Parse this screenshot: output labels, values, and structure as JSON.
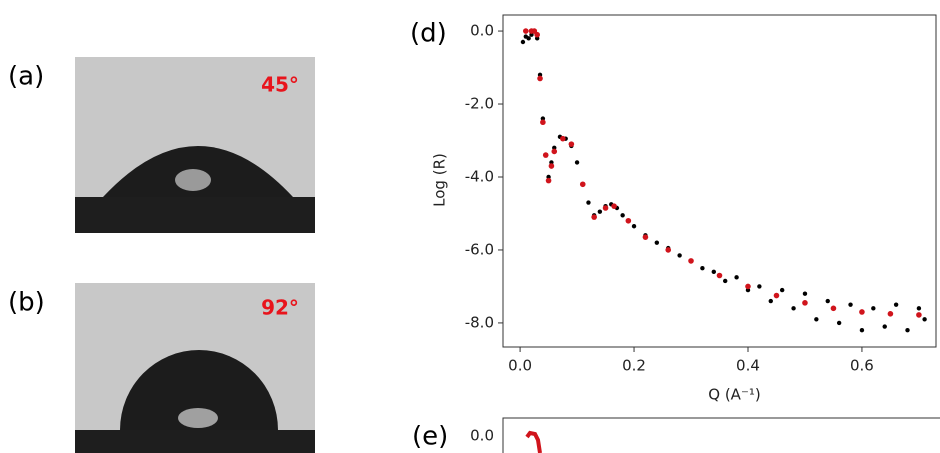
{
  "panels": [
    {
      "label": "(a)",
      "angle": "45°"
    },
    {
      "label": "(b)",
      "angle": "92°"
    },
    {
      "label": "(e)",
      "ytick": "0.0"
    }
  ],
  "chart_data": {
    "type": "scatter",
    "label": "(d)",
    "xlabel": "Q (A⁻¹)",
    "ylabel": "Log (R)",
    "xlim": [
      -0.03,
      0.73
    ],
    "ylim": [
      -8.66,
      0.44
    ],
    "xticks": [
      {
        "value": 0,
        "label": "0.0"
      },
      0.2,
      0.4,
      0.6
    ],
    "yticks": [
      {
        "value": 0,
        "label": "0.0"
      },
      {
        "value": -2,
        "label": "-2.0"
      },
      {
        "value": -4,
        "label": "-4.0"
      },
      {
        "value": -6,
        "label": "-6.0"
      },
      {
        "value": -8,
        "label": "-8.0"
      }
    ],
    "series": [
      {
        "color": "#000000",
        "x": [
          0.005,
          0.01,
          0.015,
          0.02,
          0.03,
          0.035,
          0.04,
          0.045,
          0.05,
          0.055,
          0.06,
          0.07,
          0.08,
          0.09,
          0.1,
          0.11,
          0.12,
          0.13,
          0.14,
          0.15,
          0.16,
          0.17,
          0.18,
          0.2,
          0.22,
          0.24,
          0.26,
          0.28,
          0.3,
          0.32,
          0.34,
          0.36,
          0.38,
          0.4,
          0.42,
          0.44,
          0.46,
          0.48,
          0.5,
          0.52,
          0.54,
          0.56,
          0.58,
          0.6,
          0.62,
          0.64,
          0.66,
          0.68,
          0.7,
          0.71
        ],
        "values": [
          -0.3,
          -0.15,
          -0.2,
          -0.1,
          -0.2,
          -1.2,
          -2.4,
          -3.4,
          -4.0,
          -3.6,
          -3.2,
          -2.9,
          -2.95,
          -3.15,
          -3.6,
          -4.2,
          -4.7,
          -5.05,
          -4.95,
          -4.8,
          -4.75,
          -4.85,
          -5.05,
          -5.35,
          -5.6,
          -5.8,
          -5.95,
          -6.15,
          -6.3,
          -6.5,
          -6.6,
          -6.85,
          -6.75,
          -7.1,
          -7.0,
          -7.4,
          -7.1,
          -7.6,
          -7.2,
          -7.9,
          -7.4,
          -8.0,
          -7.5,
          -8.2,
          -7.6,
          -8.1,
          -7.5,
          -8.2,
          -7.6,
          -7.9
        ]
      },
      {
        "color": "#d0141c",
        "x": [
          0.01,
          0.02,
          0.025,
          0.03,
          0.035,
          0.04,
          0.045,
          0.05,
          0.055,
          0.06,
          0.075,
          0.09,
          0.11,
          0.13,
          0.15,
          0.165,
          0.19,
          0.22,
          0.26,
          0.3,
          0.35,
          0.4,
          0.45,
          0.5,
          0.55,
          0.6,
          0.65,
          0.7
        ],
        "values": [
          0.0,
          0.0,
          0.0,
          -0.1,
          -1.3,
          -2.5,
          -3.4,
          -4.1,
          -3.7,
          -3.3,
          -2.95,
          -3.1,
          -4.2,
          -5.1,
          -4.85,
          -4.8,
          -5.2,
          -5.65,
          -6.0,
          -6.3,
          -6.7,
          -7.0,
          -7.25,
          -7.45,
          -7.6,
          -7.7,
          -7.75,
          -7.78
        ]
      }
    ]
  }
}
